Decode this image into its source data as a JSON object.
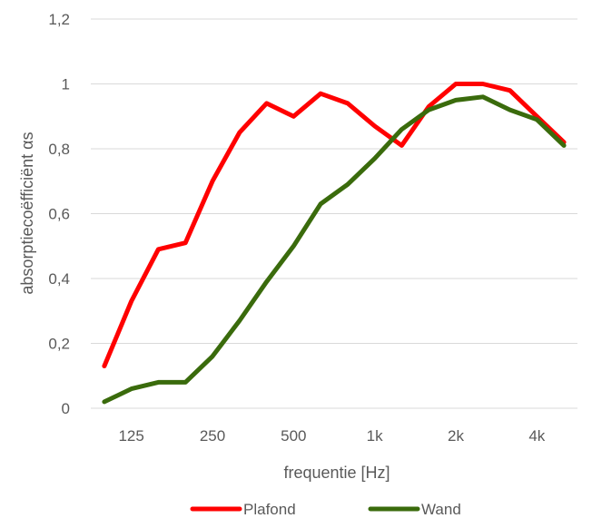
{
  "chart_data": {
    "type": "line",
    "title": "",
    "xlabel": "frequentie [Hz]",
    "ylabel": "absorptiecoëfficiënt αs",
    "ylim": [
      0,
      1.2
    ],
    "yticks": [
      "0",
      "0,2",
      "0,4",
      "0,6",
      "0,8",
      "1",
      "1,2"
    ],
    "yticks_values": [
      0,
      0.2,
      0.4,
      0.6,
      0.8,
      1.0,
      1.2
    ],
    "x": [
      "100",
      "125",
      "160",
      "200",
      "250",
      "315",
      "400",
      "500",
      "630",
      "800",
      "1000",
      "1250",
      "1600",
      "2000",
      "2500",
      "3150",
      "4000",
      "5000"
    ],
    "xtick_labels": [
      {
        "index": 1,
        "label": "125"
      },
      {
        "index": 4,
        "label": "250"
      },
      {
        "index": 7,
        "label": "500"
      },
      {
        "index": 10,
        "label": "1k"
      },
      {
        "index": 13,
        "label": "2k"
      },
      {
        "index": 16,
        "label": "4k"
      }
    ],
    "grid": true,
    "legend_position": "bottom",
    "series": [
      {
        "name": "Plafond",
        "color": "#ff0000",
        "values": [
          0.13,
          0.33,
          0.49,
          0.51,
          0.7,
          0.85,
          0.94,
          0.9,
          0.97,
          0.94,
          0.87,
          0.81,
          0.93,
          1.0,
          1.0,
          0.98,
          0.9,
          0.82
        ]
      },
      {
        "name": "Wand",
        "color": "#3a6b0c",
        "values": [
          0.02,
          0.06,
          0.08,
          0.08,
          0.16,
          0.27,
          0.39,
          0.5,
          0.63,
          0.69,
          0.77,
          0.86,
          0.92,
          0.95,
          0.96,
          0.92,
          0.89,
          0.81
        ]
      }
    ]
  }
}
